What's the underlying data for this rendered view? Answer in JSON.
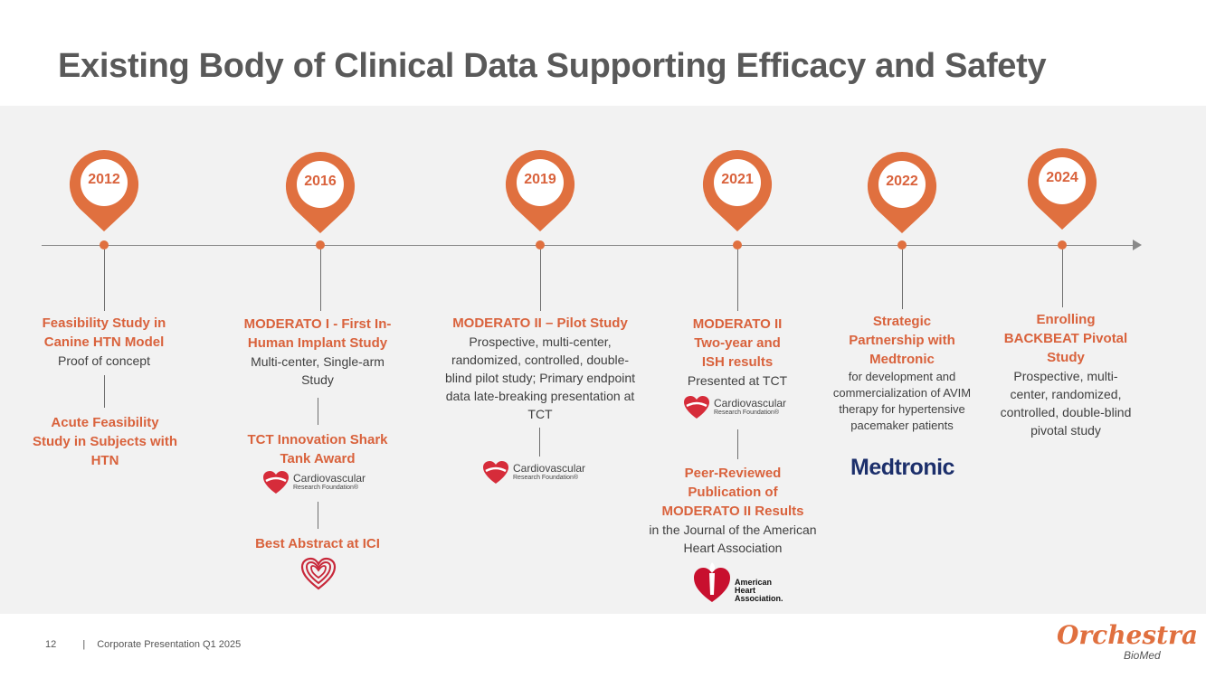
{
  "title": "Existing Body of Clinical Data Supporting Efficacy and Safety",
  "milestones": [
    {
      "year": "2012",
      "items": [
        {
          "title": "Feasibility Study in Canine HTN Model",
          "desc": "Proof of concept"
        },
        {
          "title": "Acute Feasibility Study in Subjects with HTN"
        }
      ]
    },
    {
      "year": "2016",
      "items": [
        {
          "title": "MODERATO I - First In-Human Implant Study",
          "desc": "Multi-center, Single-arm Study"
        },
        {
          "title": "TCT Innovation Shark Tank Award"
        },
        {
          "title": "Best Abstract at ICI"
        }
      ]
    },
    {
      "year": "2019",
      "items": [
        {
          "title": "MODERATO II – Pilot Study",
          "desc": "Prospective, multi-center, randomized, controlled, double-blind pilot study; Primary endpoint data late-breaking presentation at TCT"
        }
      ]
    },
    {
      "year": "2021",
      "items": [
        {
          "title": "MODERATO II Two-year and ISH results",
          "desc": "Presented at TCT"
        },
        {
          "title": "Peer-Reviewed Publication of MODERATO II Results",
          "desc": "in the Journal of the American Heart Association"
        }
      ]
    },
    {
      "year": "2022",
      "items": [
        {
          "title": "Strategic Partnership with Medtronic",
          "desc": "for development and commercialization of AVIM therapy for hypertensive pacemaker patients"
        }
      ]
    },
    {
      "year": "2024",
      "items": [
        {
          "title": "Enrolling BACKBEAT Pivotal Study",
          "desc": "Prospective, multi-center, randomized, controlled, double-blind pivotal study"
        }
      ]
    }
  ],
  "logos": {
    "crf_line1": "Cardiovascular",
    "crf_line2": "Research Foundation®",
    "medtronic": "Medtronic",
    "aha_line1": "American",
    "aha_line2": "Heart",
    "aha_line3": "Association."
  },
  "footer": {
    "page": "12",
    "separator": "|",
    "text": "Corporate Presentation Q1 2025"
  },
  "brand": {
    "name": "Orchestra",
    "sub": "BioMed"
  },
  "colors": {
    "accent": "#e0703f",
    "title": "#595959",
    "band": "#f2f2f2"
  }
}
